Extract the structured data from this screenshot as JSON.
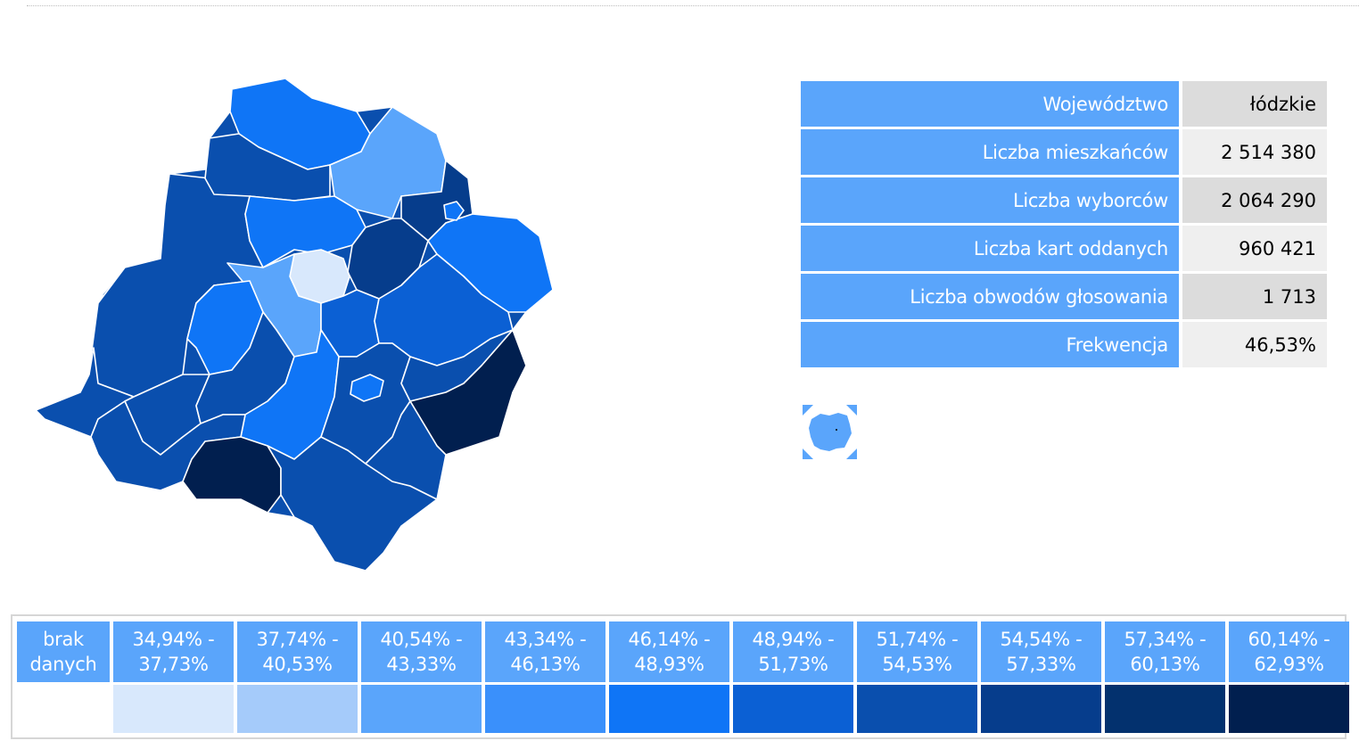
{
  "info": {
    "rows": [
      {
        "label": "Województwo",
        "value": "łódzkie"
      },
      {
        "label": "Liczba mieszkańców",
        "value": "2 514 380"
      },
      {
        "label": "Liczba wyborców",
        "value": "2 064 290"
      },
      {
        "label": "Liczba kart oddanych",
        "value": "960 421"
      },
      {
        "label": "Liczba obwodów głosowania",
        "value": "1 713"
      },
      {
        "label": "Frekwencja",
        "value": "46,53%"
      }
    ]
  },
  "legend": {
    "items": [
      {
        "line1": "brak",
        "line2": "danych",
        "color": "#ffffff"
      },
      {
        "line1": "34,94% -",
        "line2": "37,73%",
        "color": "#d8e8fc"
      },
      {
        "line1": "37,74% -",
        "line2": "40,53%",
        "color": "#a5cbfa"
      },
      {
        "line1": "40,54% -",
        "line2": "43,33%",
        "color": "#5aa5fb"
      },
      {
        "line1": "43,34% -",
        "line2": "46,13%",
        "color": "#3a90fb"
      },
      {
        "line1": "46,14% -",
        "line2": "48,93%",
        "color": "#0f75f6"
      },
      {
        "line1": "48,94% -",
        "line2": "51,73%",
        "color": "#0b60d4"
      },
      {
        "line1": "51,74% -",
        "line2": "54,53%",
        "color": "#0a4fae"
      },
      {
        "line1": "54,54% -",
        "line2": "57,33%",
        "color": "#063d8c"
      },
      {
        "line1": "57,34% -",
        "line2": "60,13%",
        "color": "#03316e"
      },
      {
        "line1": "60,14% -",
        "line2": "62,93%",
        "color": "#011f4f"
      }
    ]
  },
  "colors": {
    "header_blue": "#5aa5fb",
    "value_bg_dark": "#dcdcdc",
    "value_bg_light": "#efefef"
  },
  "map": {
    "region": "łódzkie",
    "locator_icon": "poland-locator-icon"
  }
}
